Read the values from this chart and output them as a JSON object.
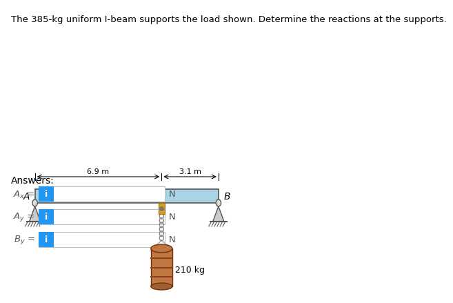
{
  "title": "The 385-kg uniform I-beam supports the load shown. Determine the reactions at the supports.",
  "title_fontsize": 9.5,
  "beam_color": "#a8d4e6",
  "beam_border_color": "#555555",
  "dim_69_label": "6.9 m",
  "dim_31_label": "3.1 m",
  "load_label": "210 kg",
  "label_A": "A",
  "label_B": "B",
  "answers_label": "Answers:",
  "unit_label": "N",
  "input_box_color": "#ffffff",
  "input_box_border": "#bbbbbb",
  "info_btn_color": "#2196F3",
  "info_btn_text": "i",
  "background_color": "#ffffff",
  "barrel_color": "#c07840",
  "barrel_stripe": "#904020",
  "chain_color": "#888888",
  "hook_color": "#d4a020",
  "support_fill": "#cccccc",
  "support_edge": "#555555"
}
